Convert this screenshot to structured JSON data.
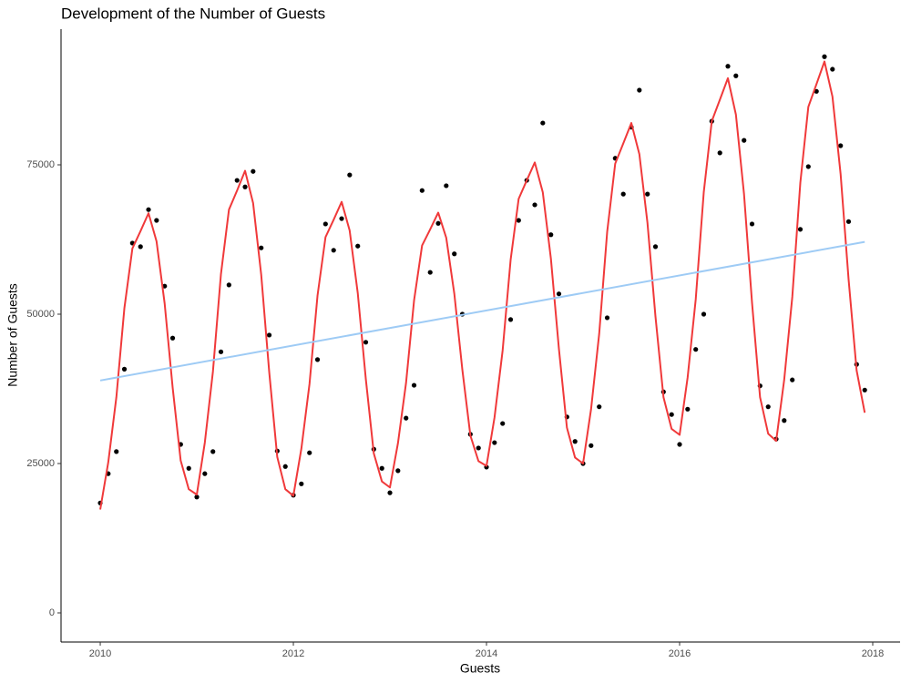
{
  "chart_data": {
    "type": "scatter",
    "title": "Development of the Number of Guests",
    "x_label": "Guests",
    "y_label": "Number of Guests",
    "xlim": [
      2009.594,
      2018.283
    ],
    "ylim": [
      -4878,
      97713
    ],
    "xticks": [
      2010,
      2012,
      2014,
      2016,
      2018
    ],
    "yticks": [
      0,
      25000,
      50000,
      75000
    ],
    "grid": false,
    "x": [
      2010,
      2010.083,
      2010.167,
      2010.25,
      2010.333,
      2010.417,
      2010.5,
      2010.583,
      2010.667,
      2010.75,
      2010.833,
      2010.917,
      2011,
      2011.083,
      2011.167,
      2011.25,
      2011.333,
      2011.417,
      2011.5,
      2011.583,
      2011.667,
      2011.75,
      2011.833,
      2011.917,
      2012,
      2012.083,
      2012.167,
      2012.25,
      2012.333,
      2012.417,
      2012.5,
      2012.583,
      2012.667,
      2012.75,
      2012.833,
      2012.917,
      2013,
      2013.083,
      2013.167,
      2013.25,
      2013.333,
      2013.417,
      2013.5,
      2013.583,
      2013.667,
      2013.75,
      2013.833,
      2013.917,
      2014,
      2014.083,
      2014.167,
      2014.25,
      2014.333,
      2014.417,
      2014.5,
      2014.583,
      2014.667,
      2014.75,
      2014.833,
      2014.917,
      2015,
      2015.083,
      2015.167,
      2015.25,
      2015.333,
      2015.417,
      2015.5,
      2015.583,
      2015.667,
      2015.75,
      2015.833,
      2015.917,
      2016,
      2016.083,
      2016.167,
      2016.25,
      2016.333,
      2016.417,
      2016.5,
      2016.583,
      2016.667,
      2016.75,
      2016.833,
      2016.917,
      2017,
      2017.083,
      2017.167,
      2017.25,
      2017.333,
      2017.417,
      2017.5,
      2017.583,
      2017.667,
      2017.75,
      2017.833,
      2017.917
    ],
    "series": [
      {
        "type": "scatter",
        "color": "#000000",
        "values": [
          18400,
          23300,
          27000,
          40800,
          61900,
          61300,
          67500,
          65700,
          54700,
          46000,
          28200,
          24200,
          19400,
          23300,
          27000,
          43700,
          54900,
          72400,
          71300,
          73900,
          61100,
          46500,
          27100,
          24500,
          19700,
          21600,
          26800,
          42400,
          65100,
          60700,
          66000,
          73300,
          61400,
          45300,
          27400,
          24200,
          20100,
          23800,
          32600,
          38100,
          70700,
          57000,
          65200,
          71500,
          60100,
          50000,
          29900,
          27600,
          24400,
          28500,
          31700,
          49100,
          65700,
          72400,
          68300,
          82000,
          63300,
          53400,
          32800,
          28700,
          25000,
          28000,
          34500,
          49400,
          76100,
          70100,
          81300,
          87500,
          70100,
          61300,
          37000,
          33200,
          28200,
          34100,
          44100,
          50000,
          82300,
          77000,
          91500,
          89900,
          79100,
          65100,
          38000,
          34500,
          29100,
          32200,
          39000,
          64200,
          74700,
          87300,
          93100,
          91000,
          78200,
          65500,
          41600,
          37300
        ]
      },
      {
        "type": "line",
        "color": "#f0393a",
        "values": [
          17300,
          25200,
          36100,
          51000,
          61000,
          63900,
          66900,
          62200,
          51800,
          37700,
          25500,
          20700,
          19800,
          28500,
          40400,
          56700,
          67500,
          70700,
          74000,
          68600,
          56600,
          40300,
          26100,
          20700,
          19600,
          27500,
          38300,
          53100,
          62900,
          65800,
          68800,
          64000,
          53500,
          39200,
          26700,
          22000,
          21000,
          28400,
          38500,
          52300,
          61500,
          64200,
          67000,
          62800,
          53400,
          40700,
          29700,
          25400,
          24600,
          32700,
          43900,
          59100,
          69300,
          72400,
          75400,
          70400,
          59300,
          44200,
          31000,
          26000,
          25000,
          34100,
          46700,
          63800,
          75200,
          78600,
          82000,
          76800,
          65300,
          49600,
          36100,
          30800,
          29800,
          39400,
          52500,
          70400,
          82300,
          85900,
          89500,
          83400,
          70100,
          51900,
          36100,
          30000,
          28800,
          39000,
          52900,
          72000,
          84700,
          88500,
          92300,
          86400,
          73500,
          55800,
          40600,
          33500
        ]
      },
      {
        "type": "line",
        "color": "#9ecbf5",
        "x": [
          2010,
          2017.917
        ],
        "values": [
          38900,
          62100
        ]
      }
    ]
  }
}
